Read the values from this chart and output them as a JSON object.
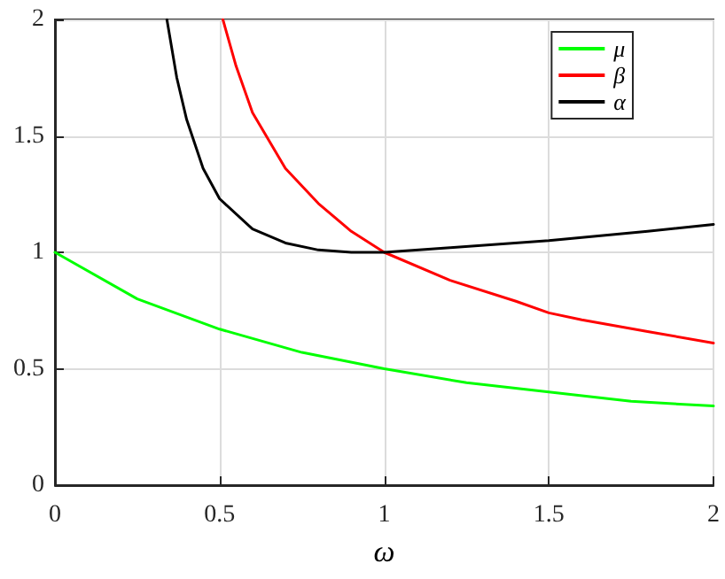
{
  "chart_data": {
    "type": "line",
    "xlabel": "ω",
    "xlim": [
      0,
      2
    ],
    "ylim": [
      0,
      2
    ],
    "xticks": [
      0,
      0.5,
      1,
      1.5,
      2
    ],
    "yticks": [
      0,
      0.5,
      1,
      1.5,
      2
    ],
    "grid": true,
    "legend": "top right",
    "marker": "none",
    "line_style": "solid",
    "series": [
      {
        "name": "μ",
        "color": "#00ff00",
        "x": [
          0,
          0.25,
          0.5,
          0.75,
          1,
          1.25,
          1.5,
          1.75,
          2
        ],
        "values": [
          1,
          0.8,
          0.67,
          0.57,
          0.5,
          0.44,
          0.4,
          0.36,
          0.34
        ]
      },
      {
        "name": "β",
        "color": "#ff0000",
        "x": [
          0.51,
          0.55,
          0.6,
          0.7,
          0.8,
          0.9,
          1,
          1.2,
          1.4,
          1.5,
          1.6,
          1.8,
          2
        ],
        "values": [
          2.0,
          1.8,
          1.6,
          1.36,
          1.21,
          1.09,
          1.0,
          0.88,
          0.79,
          0.74,
          0.71,
          0.66,
          0.61
        ]
      },
      {
        "name": "α",
        "color": "#000000",
        "x": [
          0.34,
          0.37,
          0.4,
          0.45,
          0.5,
          0.6,
          0.7,
          0.8,
          0.9,
          1,
          1.2,
          1.5,
          1.8,
          2
        ],
        "values": [
          2.0,
          1.75,
          1.57,
          1.36,
          1.23,
          1.1,
          1.04,
          1.01,
          1.0,
          1.0,
          1.02,
          1.05,
          1.09,
          1.12
        ]
      }
    ]
  }
}
